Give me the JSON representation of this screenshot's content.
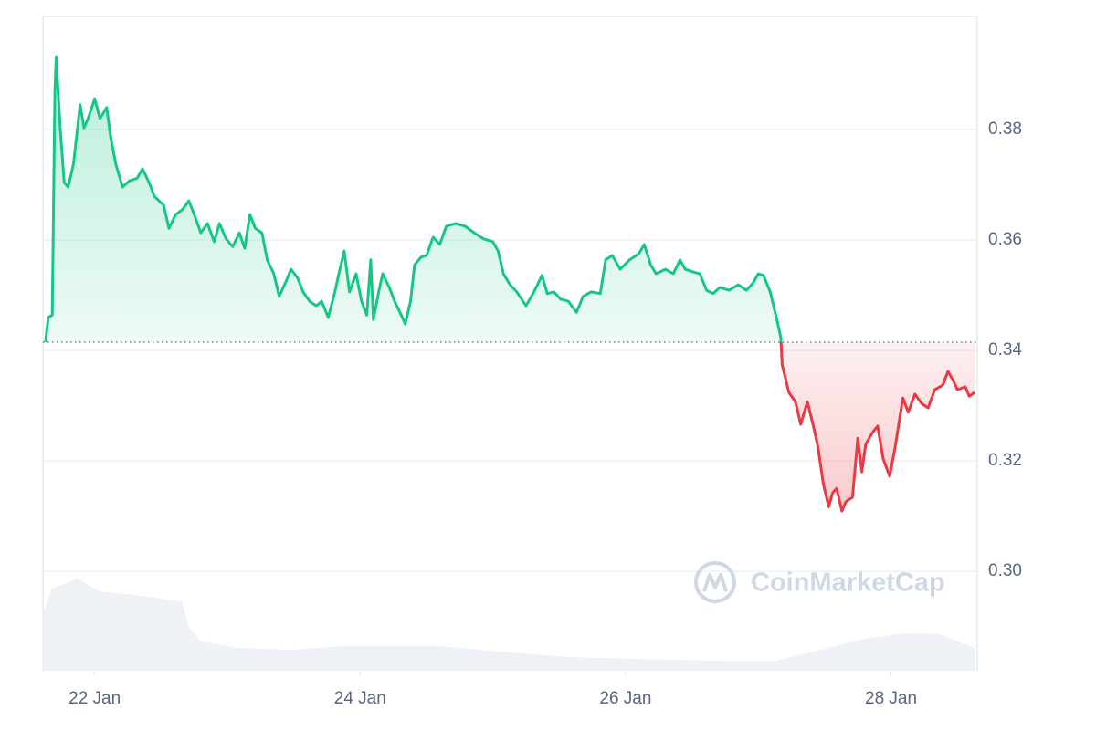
{
  "chart_data": {
    "type": "line",
    "watermark": "CoinMarketCap",
    "xlim": [
      21.61,
      28.65
    ],
    "ylim": [
      0.282,
      0.4005
    ],
    "xticks": [
      {
        "value": 22,
        "label": "22 Jan"
      },
      {
        "value": 24,
        "label": "24 Jan"
      },
      {
        "value": 26,
        "label": "26 Jan"
      },
      {
        "value": 28,
        "label": "28 Jan"
      }
    ],
    "yticks": [
      {
        "value": 0.3,
        "label": "0.30"
      },
      0.32,
      0.34,
      0.36,
      0.38
    ],
    "grid": true,
    "baseline": 0.3415,
    "color_up": "#16c784",
    "color_down": "#ea3943",
    "x": [
      21.63,
      21.65,
      21.68,
      21.7,
      21.71,
      21.74,
      21.77,
      21.8,
      21.84,
      21.89,
      21.92,
      21.95,
      22.0,
      22.04,
      22.09,
      22.12,
      22.16,
      22.21,
      22.26,
      22.32,
      22.36,
      22.41,
      22.45,
      22.52,
      22.56,
      22.61,
      22.66,
      22.71,
      22.75,
      22.8,
      22.85,
      22.9,
      22.94,
      22.99,
      23.04,
      23.09,
      23.13,
      23.17,
      23.21,
      23.26,
      23.3,
      23.35,
      23.39,
      23.44,
      23.48,
      23.53,
      23.57,
      23.62,
      23.67,
      23.71,
      23.76,
      23.81,
      23.84,
      23.88,
      23.92,
      23.97,
      24.01,
      24.05,
      24.08,
      24.1,
      24.14,
      24.17,
      24.22,
      24.26,
      24.31,
      24.34,
      24.38,
      24.41,
      24.46,
      24.5,
      24.55,
      24.6,
      24.65,
      24.72,
      24.79,
      24.86,
      24.93,
      25.0,
      25.04,
      25.08,
      25.13,
      25.18,
      25.25,
      25.31,
      25.37,
      25.41,
      25.46,
      25.51,
      25.57,
      25.63,
      25.68,
      25.74,
      25.81,
      25.85,
      25.9,
      25.96,
      26.03,
      26.1,
      26.14,
      26.19,
      26.23,
      26.3,
      26.36,
      26.41,
      26.45,
      26.51,
      26.56,
      26.61,
      26.66,
      26.71,
      26.78,
      26.85,
      26.91,
      26.96,
      27.0,
      27.04,
      27.09,
      27.14,
      27.17,
      27.18,
      27.23,
      27.28,
      27.32,
      27.37,
      27.42,
      27.45,
      27.49,
      27.53,
      27.56,
      27.59,
      27.63,
      27.66,
      27.71,
      27.75,
      27.78,
      27.81,
      27.86,
      27.9,
      27.94,
      27.99,
      28.03,
      28.09,
      28.13,
      28.18,
      28.23,
      28.28,
      28.33,
      28.39,
      28.43,
      28.47,
      28.5,
      28.56,
      28.59,
      28.63
    ],
    "values": [
      0.3415,
      0.346,
      0.3464,
      0.3869,
      0.3932,
      0.3803,
      0.3704,
      0.3696,
      0.3737,
      0.3845,
      0.3803,
      0.382,
      0.3856,
      0.382,
      0.384,
      0.3787,
      0.3737,
      0.3696,
      0.3707,
      0.3712,
      0.3729,
      0.3704,
      0.3679,
      0.3663,
      0.3621,
      0.3646,
      0.3655,
      0.3671,
      0.3646,
      0.3613,
      0.363,
      0.3597,
      0.363,
      0.3602,
      0.3588,
      0.3613,
      0.3585,
      0.3646,
      0.3621,
      0.3613,
      0.3564,
      0.3539,
      0.3498,
      0.3524,
      0.3547,
      0.3531,
      0.3506,
      0.3489,
      0.3481,
      0.3489,
      0.346,
      0.3506,
      0.3539,
      0.358,
      0.3506,
      0.3539,
      0.3489,
      0.3464,
      0.3564,
      0.3456,
      0.3506,
      0.3539,
      0.3514,
      0.3489,
      0.3464,
      0.3448,
      0.3489,
      0.3555,
      0.3569,
      0.3572,
      0.3605,
      0.3592,
      0.3625,
      0.363,
      0.3625,
      0.3613,
      0.3602,
      0.3597,
      0.358,
      0.3539,
      0.3519,
      0.3506,
      0.3481,
      0.3506,
      0.3536,
      0.3503,
      0.3506,
      0.3493,
      0.3489,
      0.3469,
      0.3498,
      0.3506,
      0.3503,
      0.3564,
      0.3572,
      0.3547,
      0.3564,
      0.3575,
      0.3592,
      0.3555,
      0.3539,
      0.3547,
      0.3539,
      0.3564,
      0.3547,
      0.3542,
      0.3539,
      0.3509,
      0.3503,
      0.3514,
      0.3509,
      0.3519,
      0.3509,
      0.3522,
      0.3539,
      0.3536,
      0.3506,
      0.3456,
      0.3423,
      0.3374,
      0.3324,
      0.3307,
      0.3266,
      0.3307,
      0.3258,
      0.3225,
      0.3159,
      0.3117,
      0.3142,
      0.315,
      0.3109,
      0.3126,
      0.3134,
      0.3241,
      0.318,
      0.323,
      0.3251,
      0.3263,
      0.3205,
      0.3172,
      0.3223,
      0.3314,
      0.3288,
      0.3321,
      0.3304,
      0.3296,
      0.3329,
      0.3337,
      0.3362,
      0.3345,
      0.3329,
      0.3334,
      0.3317,
      0.3324
    ],
    "volume": {
      "color": "#eef1f5",
      "y2lim": [
        0,
        100
      ],
      "x": [
        21.61,
        21.68,
        21.77,
        21.87,
        21.94,
        22.04,
        22.25,
        22.45,
        22.66,
        22.71,
        22.8,
        23.07,
        23.48,
        23.9,
        24.58,
        25.07,
        25.55,
        26.1,
        26.78,
        27.13,
        27.47,
        27.81,
        28.09,
        28.36,
        28.63
      ],
      "values": [
        8.8,
        12.6,
        13.2,
        14.2,
        13.2,
        12.1,
        11.7,
        11.2,
        10.5,
        6.6,
        4.5,
        3.5,
        3.2,
        3.8,
        3.8,
        2.9,
        2.1,
        1.8,
        1.5,
        1.5,
        3.2,
        4.9,
        5.7,
        5.6,
        3.5
      ]
    }
  }
}
